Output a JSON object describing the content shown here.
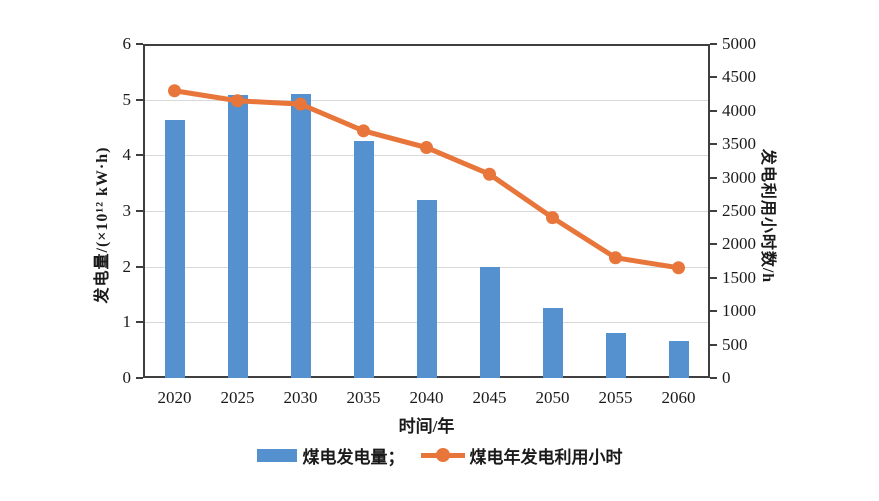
{
  "chart_data": {
    "type": "combo",
    "title": "",
    "categories": [
      "2020",
      "2025",
      "2030",
      "2035",
      "2040",
      "2045",
      "2050",
      "2055",
      "2060"
    ],
    "series": [
      {
        "name": "煤电发电量",
        "type": "bar",
        "axis": "left",
        "color": "#5491CE",
        "values": [
          4.63,
          5.08,
          5.1,
          4.25,
          3.2,
          2.0,
          1.25,
          0.81,
          0.66
        ]
      },
      {
        "name": "煤电年发电利用小时",
        "type": "line",
        "axis": "right",
        "color": "#E8763B",
        "values": [
          4300,
          4150,
          4100,
          3700,
          3450,
          3050,
          2400,
          1800,
          1650
        ]
      }
    ],
    "xlabel": "时间/年",
    "ylabel_left": "发电量/(×10¹² kW·h)",
    "ylabel_right": "发电利用小时数/h",
    "ylim_left": [
      0,
      6
    ],
    "yticks_left": [
      "0",
      "1",
      "2",
      "3",
      "4",
      "5",
      "6"
    ],
    "ylim_right": [
      0,
      5000
    ],
    "yticks_right": [
      "0",
      "500",
      "1000",
      "1500",
      "2000",
      "2500",
      "3000",
      "3500",
      "4000",
      "4500",
      "5000"
    ],
    "grid": true,
    "legend_position": "bottom"
  },
  "legend": {
    "bar_label": "煤电发电量；",
    "line_label": "煤电年发电利用小时"
  },
  "colors": {
    "bar": "#5491CE",
    "line": "#E8763B",
    "axis": "#3F3F3F",
    "grid": "#D9D9D9",
    "text": "#1A1A1A"
  }
}
